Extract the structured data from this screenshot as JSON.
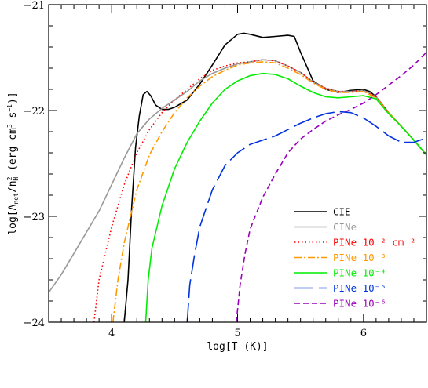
{
  "chart_data": {
    "type": "line",
    "xlabel": "log[T (K)]",
    "ylabel_parts": {
      "pre": "log[Λ",
      "sub1": "net",
      "mid": "/n",
      "sup2": "2",
      "sub2": "H",
      "post": " (erg cm",
      "sup3": "3",
      "post2": " s",
      "sup4": "−1",
      "end": ")]"
    },
    "xlim": [
      3.5,
      6.5
    ],
    "ylim": [
      -24,
      -21
    ],
    "x_ticks": [
      4,
      5,
      6
    ],
    "x_tick_labels": [
      "4",
      "5",
      "6"
    ],
    "y_ticks": [
      -24,
      -23,
      -22,
      -21
    ],
    "y_tick_labels": [
      "−24",
      "−23",
      "−22",
      "−21"
    ],
    "legend_placement": "bottom-right",
    "series": [
      {
        "name": "CIE",
        "color": "#000000",
        "dash": "solid",
        "points": [
          [
            4.1,
            -24.0
          ],
          [
            4.13,
            -23.6
          ],
          [
            4.16,
            -22.9
          ],
          [
            4.19,
            -22.35
          ],
          [
            4.22,
            -22.05
          ],
          [
            4.25,
            -21.85
          ],
          [
            4.28,
            -21.82
          ],
          [
            4.31,
            -21.86
          ],
          [
            4.35,
            -21.95
          ],
          [
            4.4,
            -21.99
          ],
          [
            4.45,
            -21.99
          ],
          [
            4.5,
            -21.97
          ],
          [
            4.6,
            -21.9
          ],
          [
            4.7,
            -21.75
          ],
          [
            4.8,
            -21.57
          ],
          [
            4.9,
            -21.38
          ],
          [
            5.0,
            -21.28
          ],
          [
            5.05,
            -21.27
          ],
          [
            5.1,
            -21.28
          ],
          [
            5.2,
            -21.31
          ],
          [
            5.3,
            -21.3
          ],
          [
            5.4,
            -21.29
          ],
          [
            5.45,
            -21.3
          ],
          [
            5.5,
            -21.45
          ],
          [
            5.6,
            -21.72
          ],
          [
            5.7,
            -21.8
          ],
          [
            5.8,
            -21.83
          ],
          [
            5.9,
            -21.81
          ],
          [
            6.0,
            -21.8
          ],
          [
            6.05,
            -21.82
          ],
          [
            6.1,
            -21.87
          ],
          [
            6.2,
            -22.02
          ],
          [
            6.3,
            -22.15
          ],
          [
            6.4,
            -22.28
          ],
          [
            6.5,
            -22.42
          ]
        ]
      },
      {
        "name": "CINe",
        "color": "#999999",
        "dash": "solid",
        "points": [
          [
            3.5,
            -23.72
          ],
          [
            3.6,
            -23.55
          ],
          [
            3.7,
            -23.35
          ],
          [
            3.8,
            -23.15
          ],
          [
            3.9,
            -22.95
          ],
          [
            4.0,
            -22.7
          ],
          [
            4.1,
            -22.45
          ],
          [
            4.2,
            -22.22
          ],
          [
            4.3,
            -22.08
          ],
          [
            4.4,
            -21.98
          ],
          [
            4.5,
            -21.9
          ],
          [
            4.6,
            -21.82
          ],
          [
            4.7,
            -21.72
          ],
          [
            4.8,
            -21.65
          ],
          [
            4.9,
            -21.6
          ],
          [
            5.0,
            -21.56
          ],
          [
            5.1,
            -21.54
          ],
          [
            5.2,
            -21.52
          ],
          [
            5.3,
            -21.53
          ],
          [
            5.4,
            -21.58
          ],
          [
            5.5,
            -21.64
          ],
          [
            5.6,
            -21.73
          ],
          [
            5.7,
            -21.79
          ],
          [
            5.8,
            -21.82
          ],
          [
            5.9,
            -21.82
          ],
          [
            6.0,
            -21.81
          ],
          [
            6.1,
            -21.87
          ],
          [
            6.2,
            -22.02
          ],
          [
            6.3,
            -22.15
          ],
          [
            6.4,
            -22.28
          ],
          [
            6.5,
            -22.42
          ]
        ]
      },
      {
        "name": "PINe 10⁻² cm⁻²",
        "color": "#ff0000",
        "dash": "1.5,3",
        "points": [
          [
            3.86,
            -24.0
          ],
          [
            3.9,
            -23.6
          ],
          [
            4.0,
            -23.1
          ],
          [
            4.1,
            -22.7
          ],
          [
            4.2,
            -22.4
          ],
          [
            4.3,
            -22.18
          ],
          [
            4.4,
            -22.02
          ],
          [
            4.5,
            -21.9
          ],
          [
            4.6,
            -21.8
          ],
          [
            4.7,
            -21.7
          ],
          [
            4.8,
            -21.62
          ],
          [
            4.9,
            -21.58
          ],
          [
            5.0,
            -21.55
          ],
          [
            5.1,
            -21.54
          ],
          [
            5.2,
            -21.52
          ],
          [
            5.3,
            -21.53
          ],
          [
            5.4,
            -21.58
          ],
          [
            5.5,
            -21.64
          ],
          [
            5.6,
            -21.73
          ],
          [
            5.7,
            -21.79
          ],
          [
            5.8,
            -21.82
          ],
          [
            5.9,
            -21.82
          ],
          [
            6.0,
            -21.81
          ],
          [
            6.1,
            -21.87
          ],
          [
            6.2,
            -22.02
          ],
          [
            6.3,
            -22.15
          ],
          [
            6.4,
            -22.28
          ],
          [
            6.5,
            -22.42
          ]
        ]
      },
      {
        "name": "PINe 10⁻³",
        "color": "#ff9900",
        "dash": "9,3,2,3",
        "points": [
          [
            4.01,
            -24.0
          ],
          [
            4.05,
            -23.6
          ],
          [
            4.1,
            -23.25
          ],
          [
            4.2,
            -22.75
          ],
          [
            4.3,
            -22.42
          ],
          [
            4.4,
            -22.2
          ],
          [
            4.5,
            -22.02
          ],
          [
            4.6,
            -21.88
          ],
          [
            4.7,
            -21.77
          ],
          [
            4.8,
            -21.68
          ],
          [
            4.9,
            -21.62
          ],
          [
            5.0,
            -21.57
          ],
          [
            5.1,
            -21.55
          ],
          [
            5.2,
            -21.54
          ],
          [
            5.3,
            -21.55
          ],
          [
            5.4,
            -21.6
          ],
          [
            5.5,
            -21.66
          ],
          [
            5.6,
            -21.74
          ],
          [
            5.7,
            -21.8
          ],
          [
            5.8,
            -21.83
          ],
          [
            5.9,
            -21.83
          ],
          [
            6.0,
            -21.82
          ],
          [
            6.1,
            -21.88
          ],
          [
            6.2,
            -22.02
          ],
          [
            6.3,
            -22.15
          ],
          [
            6.4,
            -22.28
          ],
          [
            6.5,
            -22.42
          ]
        ]
      },
      {
        "name": "PINe 10⁻⁴",
        "color": "#00ee00",
        "dash": "solid",
        "points": [
          [
            4.27,
            -24.0
          ],
          [
            4.29,
            -23.6
          ],
          [
            4.32,
            -23.3
          ],
          [
            4.4,
            -22.9
          ],
          [
            4.5,
            -22.55
          ],
          [
            4.6,
            -22.3
          ],
          [
            4.7,
            -22.1
          ],
          [
            4.8,
            -21.93
          ],
          [
            4.9,
            -21.8
          ],
          [
            5.0,
            -21.72
          ],
          [
            5.1,
            -21.67
          ],
          [
            5.2,
            -21.65
          ],
          [
            5.3,
            -21.66
          ],
          [
            5.4,
            -21.7
          ],
          [
            5.5,
            -21.77
          ],
          [
            5.6,
            -21.83
          ],
          [
            5.7,
            -21.87
          ],
          [
            5.8,
            -21.88
          ],
          [
            5.9,
            -21.87
          ],
          [
            6.0,
            -21.86
          ],
          [
            6.1,
            -21.89
          ],
          [
            6.2,
            -22.03
          ],
          [
            6.3,
            -22.15
          ],
          [
            6.4,
            -22.28
          ],
          [
            6.5,
            -22.42
          ]
        ]
      },
      {
        "name": "PINe 10⁻⁵",
        "color": "#0033dd",
        "dash": "24,7",
        "points": [
          [
            4.6,
            -24.0
          ],
          [
            4.62,
            -23.65
          ],
          [
            4.66,
            -23.35
          ],
          [
            4.7,
            -23.1
          ],
          [
            4.8,
            -22.75
          ],
          [
            4.9,
            -22.52
          ],
          [
            5.0,
            -22.4
          ],
          [
            5.1,
            -22.32
          ],
          [
            5.2,
            -22.28
          ],
          [
            5.3,
            -22.24
          ],
          [
            5.4,
            -22.18
          ],
          [
            5.5,
            -22.12
          ],
          [
            5.6,
            -22.07
          ],
          [
            5.7,
            -22.03
          ],
          [
            5.8,
            -22.01
          ],
          [
            5.9,
            -22.02
          ],
          [
            6.0,
            -22.07
          ],
          [
            6.1,
            -22.15
          ],
          [
            6.2,
            -22.24
          ],
          [
            6.3,
            -22.3
          ],
          [
            6.4,
            -22.3
          ],
          [
            6.5,
            -22.26
          ]
        ]
      },
      {
        "name": "PINe 10⁻⁶",
        "color": "#9900bb",
        "dash": "7,4",
        "points": [
          [
            4.99,
            -24.0
          ],
          [
            5.02,
            -23.65
          ],
          [
            5.06,
            -23.35
          ],
          [
            5.1,
            -23.12
          ],
          [
            5.2,
            -22.82
          ],
          [
            5.3,
            -22.6
          ],
          [
            5.4,
            -22.4
          ],
          [
            5.5,
            -22.27
          ],
          [
            5.6,
            -22.18
          ],
          [
            5.7,
            -22.1
          ],
          [
            5.8,
            -22.04
          ],
          [
            5.9,
            -21.99
          ],
          [
            6.0,
            -21.93
          ],
          [
            6.1,
            -21.85
          ],
          [
            6.2,
            -21.76
          ],
          [
            6.3,
            -21.67
          ],
          [
            6.4,
            -21.57
          ],
          [
            6.5,
            -21.45
          ]
        ]
      }
    ]
  }
}
